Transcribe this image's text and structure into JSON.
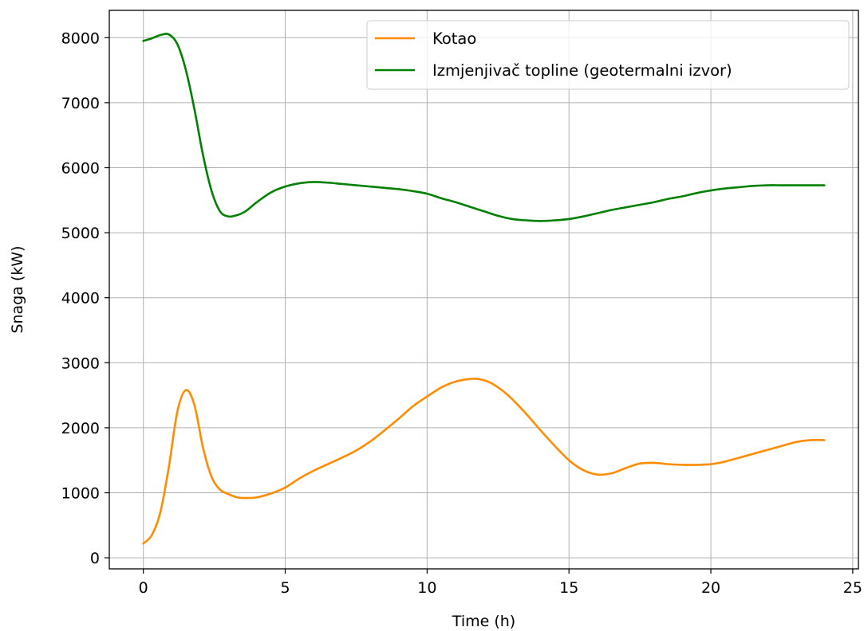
{
  "chart_data": {
    "type": "line",
    "xlabel": "Time (h)",
    "ylabel": "Snaga (kW)",
    "xlim": [
      -1.2,
      25.2
    ],
    "ylim": [
      -170,
      8420
    ],
    "xticks": [
      0,
      5,
      10,
      15,
      20,
      25
    ],
    "yticks": [
      0,
      1000,
      2000,
      3000,
      4000,
      5000,
      6000,
      7000,
      8000
    ],
    "grid": true,
    "legend_position": "top-right",
    "series": [
      {
        "name": "Kotao",
        "color": "#ff8c00",
        "x": [
          0,
          0.3,
          0.6,
          0.9,
          1.2,
          1.5,
          1.8,
          2.1,
          2.4,
          2.7,
          3.0,
          3.3,
          3.6,
          4.0,
          4.5,
          5.0,
          5.5,
          6.0,
          6.5,
          7.0,
          7.5,
          8.0,
          8.5,
          9.0,
          9.5,
          10.0,
          10.5,
          11.0,
          11.5,
          11.8,
          12.2,
          12.6,
          13.0,
          13.5,
          14.0,
          14.5,
          15.0,
          15.5,
          16.0,
          16.5,
          17.0,
          17.5,
          18.0,
          18.5,
          19.0,
          19.5,
          20.0,
          20.5,
          21.0,
          21.5,
          22.0,
          22.5,
          23.0,
          23.5,
          24.0
        ],
        "y": [
          220,
          350,
          700,
          1400,
          2250,
          2580,
          2350,
          1700,
          1250,
          1050,
          980,
          930,
          920,
          930,
          990,
          1080,
          1220,
          1340,
          1440,
          1540,
          1650,
          1790,
          1960,
          2140,
          2330,
          2480,
          2620,
          2710,
          2750,
          2750,
          2700,
          2590,
          2440,
          2210,
          1960,
          1720,
          1500,
          1350,
          1280,
          1300,
          1380,
          1450,
          1460,
          1440,
          1430,
          1430,
          1440,
          1480,
          1540,
          1600,
          1660,
          1720,
          1780,
          1810,
          1810
        ]
      },
      {
        "name": "Izmjenjivač topline (geotermalni izvor)",
        "color": "#008000",
        "x": [
          0,
          0.3,
          0.6,
          0.9,
          1.2,
          1.5,
          1.8,
          2.1,
          2.4,
          2.7,
          3.0,
          3.3,
          3.6,
          4.0,
          4.5,
          5.0,
          5.5,
          6.0,
          6.5,
          7.0,
          7.5,
          8.0,
          8.5,
          9.0,
          9.5,
          10.0,
          10.5,
          11.0,
          11.5,
          12.0,
          12.5,
          13.0,
          13.5,
          14.0,
          14.5,
          15.0,
          15.5,
          16.0,
          16.5,
          17.0,
          17.5,
          18.0,
          18.5,
          19.0,
          19.5,
          20.0,
          20.5,
          21.0,
          21.5,
          22.0,
          22.5,
          23.0,
          23.5,
          24.0
        ],
        "y": [
          7950,
          7990,
          8040,
          8050,
          7900,
          7500,
          6900,
          6200,
          5650,
          5330,
          5250,
          5270,
          5330,
          5470,
          5620,
          5710,
          5760,
          5780,
          5770,
          5750,
          5730,
          5710,
          5690,
          5670,
          5640,
          5600,
          5530,
          5470,
          5400,
          5330,
          5260,
          5210,
          5190,
          5180,
          5190,
          5210,
          5250,
          5300,
          5350,
          5390,
          5430,
          5470,
          5520,
          5560,
          5610,
          5650,
          5680,
          5700,
          5720,
          5730,
          5730,
          5730,
          5730,
          5730
        ]
      }
    ]
  }
}
